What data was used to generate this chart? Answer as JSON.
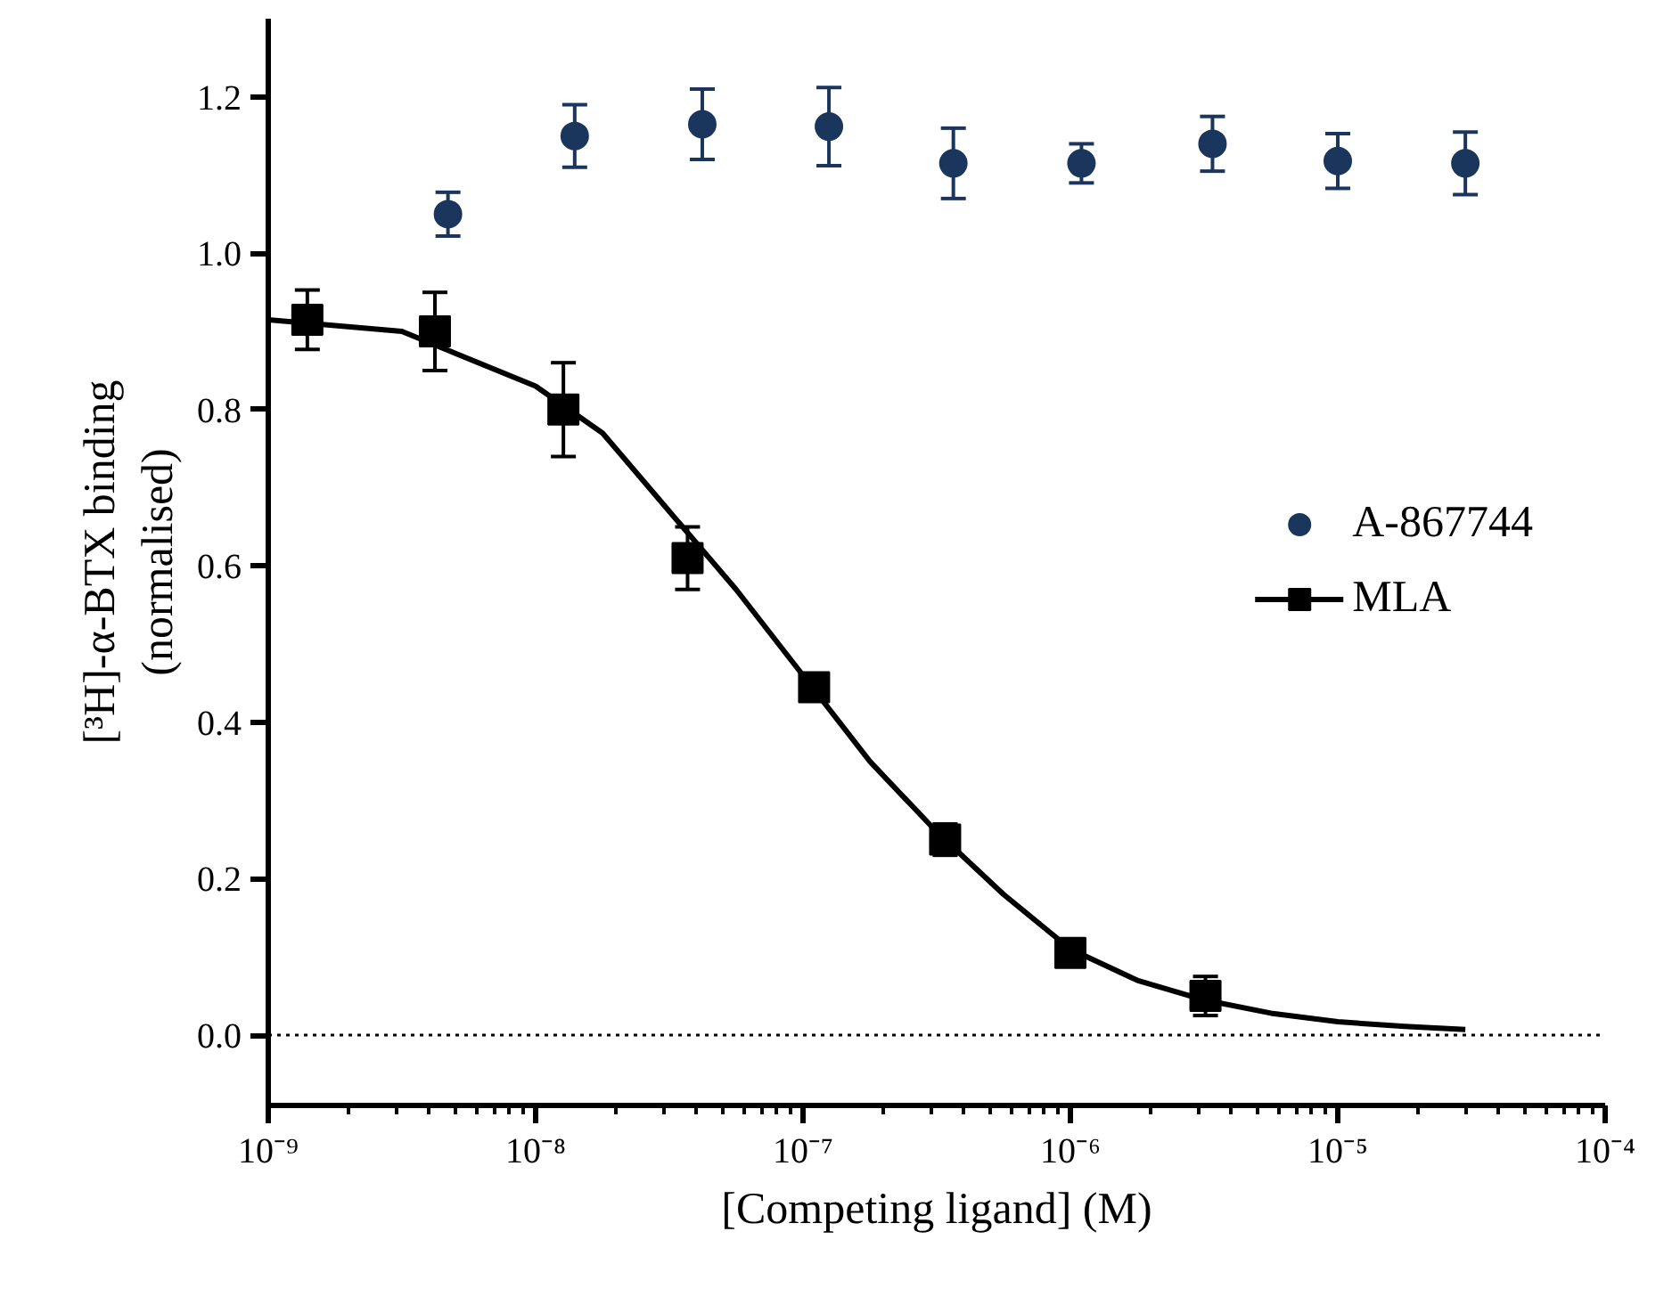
{
  "chart_data": {
    "type": "scatter",
    "xlabel": "[Competing ligand] (M)",
    "ylabel": "[³H]-α-BTX binding\n(normalised)",
    "log": "x",
    "xlim": [
      1e-09,
      0.0001
    ],
    "ylim": [
      -0.09,
      1.3
    ],
    "xticks": [
      {
        "value": 1e-09,
        "label": "10⁻⁹"
      },
      {
        "value": 1e-08,
        "label": "10⁻⁸"
      },
      {
        "value": 1e-07,
        "label": "10⁻⁷"
      },
      {
        "value": 1e-06,
        "label": "10⁻⁶"
      },
      {
        "value": 1e-05,
        "label": "10⁻⁵"
      },
      {
        "value": 0.0001,
        "label": "10⁻⁴"
      }
    ],
    "yticks": [
      {
        "value": 0,
        "label": "0.0"
      },
      {
        "value": 0.2,
        "label": "0.2"
      },
      {
        "value": 0.4,
        "label": "0.4"
      },
      {
        "value": 0.6,
        "label": "0.6"
      },
      {
        "value": 0.8,
        "label": "0.8"
      },
      {
        "value": 1,
        "label": "1.0"
      },
      {
        "value": 1.2,
        "label": "1.2"
      }
    ],
    "grid": false,
    "legend": "right",
    "ref_lines": [
      {
        "axis": "y",
        "value": 0,
        "label": null,
        "color": "#000000",
        "line_style": "dotted"
      }
    ],
    "series": [
      {
        "name": "A-867744",
        "marker": "circle",
        "color": "#1b365d",
        "x": [
          4.7e-09,
          1.4e-08,
          4.2e-08,
          1.25e-07,
          3.65e-07,
          1.1e-06,
          3.4e-06,
          1e-05,
          3e-05
        ],
        "values": [
          1.05,
          1.15,
          1.165,
          1.162,
          1.115,
          1.115,
          1.14,
          1.118,
          1.115
        ],
        "errors": [
          0.028,
          0.04,
          0.045,
          0.05,
          0.045,
          0.025,
          0.035,
          0.035,
          0.04
        ]
      },
      {
        "name": "MLA",
        "marker": "square",
        "color": "#000000",
        "x": [
          1.4e-09,
          4.2e-09,
          1.27e-08,
          3.7e-08,
          1.1e-07,
          3.4e-07,
          1e-06,
          3.2e-06
        ],
        "values": [
          0.915,
          0.9,
          0.8,
          0.61,
          0.445,
          0.25,
          0.105,
          0.05
        ],
        "errors": [
          0.038,
          0.05,
          0.06,
          0.04,
          0.01,
          0.02,
          0.01,
          0.025
        ]
      },
      {
        "type": "line",
        "color": "#000000",
        "marker": "none",
        "x": [
          1e-09,
          3.16e-09,
          1e-08,
          1.78e-08,
          3.16e-08,
          5.62e-08,
          1e-07,
          1.78e-07,
          3.16e-07,
          5.62e-07,
          1e-06,
          1.78e-06,
          3.16e-06,
          5.62e-06,
          1e-05,
          1.78e-05,
          3e-05
        ],
        "values": [
          0.915,
          0.9,
          0.83,
          0.77,
          0.67,
          0.57,
          0.46,
          0.35,
          0.26,
          0.18,
          0.11,
          0.07,
          0.045,
          0.028,
          0.017,
          0.011,
          0.007
        ]
      }
    ]
  }
}
